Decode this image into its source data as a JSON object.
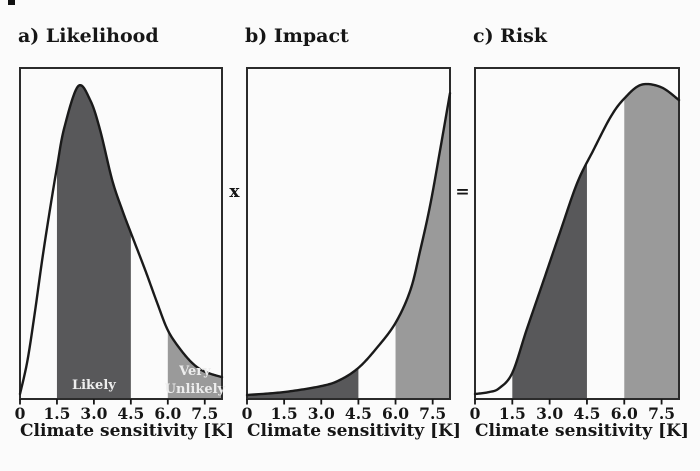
{
  "figure": {
    "background": "#fbfbfb",
    "colors": {
      "dark_band": "#58585a",
      "light_band": "#9a9a9a",
      "curve": "#1a1a1a",
      "box_border": "#2b2b2b",
      "text": "#161616",
      "band_label": "#ededed"
    },
    "operators": [
      {
        "symbol": "x"
      },
      {
        "symbol": "="
      }
    ]
  },
  "chart_data": [
    {
      "id": "likelihood",
      "type": "area",
      "title": "a) Likelihood",
      "xlabel": "Climate sensitivity [K]",
      "ylabel": "",
      "grid": false,
      "xlim": [
        0,
        8.2
      ],
      "ylim": [
        0,
        1
      ],
      "x_ticks": [
        "0",
        "1.5",
        "3.0",
        "4.5",
        "6.0",
        "7.5"
      ],
      "x_tick_values": [
        0,
        1.5,
        3.0,
        4.5,
        6.0,
        7.5
      ],
      "curve_k": [
        0,
        0.3,
        0.6,
        0.9,
        1.2,
        1.5,
        1.8,
        2.36,
        2.85,
        3.25,
        3.74,
        4.15,
        4.5,
        5.08,
        5.57,
        6.0,
        6.5,
        7.03,
        7.52,
        8.2
      ],
      "curve_h": [
        0.015,
        0.115,
        0.26,
        0.42,
        0.565,
        0.7,
        0.82,
        0.945,
        0.903,
        0.813,
        0.662,
        0.571,
        0.502,
        0.39,
        0.29,
        0.208,
        0.151,
        0.106,
        0.082,
        0.066
      ],
      "bands": [
        {
          "from": 1.5,
          "to": 4.5,
          "shade": "dark",
          "label": "Likely",
          "label_lines": [
            "Likely"
          ]
        },
        {
          "from": 6.0,
          "to": 8.2,
          "shade": "light",
          "label": "Very Unlikely",
          "label_lines": [
            "Very",
            "Unlikely"
          ]
        }
      ]
    },
    {
      "id": "impact",
      "type": "area",
      "title": "b) Impact",
      "xlabel": "Climate sensitivity [K]",
      "ylabel": "",
      "grid": false,
      "xlim": [
        0,
        8.2
      ],
      "ylim": [
        0,
        1
      ],
      "x_ticks": [
        "0",
        "1.5",
        "3.0",
        "4.5",
        "6.0",
        "7.5"
      ],
      "x_tick_values": [
        0,
        1.5,
        3.0,
        4.5,
        6.0,
        7.5
      ],
      "curve_k": [
        0,
        1.5,
        3.0,
        3.74,
        4.5,
        5.24,
        6.0,
        6.6,
        7.0,
        7.4,
        7.8,
        8.2
      ],
      "curve_h": [
        0.012,
        0.021,
        0.039,
        0.057,
        0.094,
        0.154,
        0.23,
        0.329,
        0.45,
        0.586,
        0.752,
        0.924
      ],
      "bands": [
        {
          "from": 0.0,
          "to": 4.5,
          "shade": "dark",
          "label": "",
          "label_lines": []
        },
        {
          "from": 6.0,
          "to": 8.2,
          "shade": "light",
          "label": "",
          "label_lines": []
        }
      ]
    },
    {
      "id": "risk",
      "type": "area",
      "title": "c) Risk",
      "xlabel": "Climate sensitivity [K]",
      "ylabel": "",
      "grid": false,
      "xlim": [
        0,
        8.2
      ],
      "ylim": [
        0,
        1
      ],
      "x_ticks": [
        "0",
        "1.5",
        "3.0",
        "4.5",
        "6.0",
        "7.5"
      ],
      "x_tick_values": [
        0,
        1.5,
        3.0,
        4.5,
        6.0,
        7.5
      ],
      "curve_k": [
        0,
        0.57,
        0.98,
        1.5,
        2.07,
        2.72,
        3.41,
        4.11,
        4.76,
        5.45,
        5.98,
        6.67,
        7.48,
        8.2
      ],
      "curve_h": [
        0.015,
        0.021,
        0.033,
        0.079,
        0.208,
        0.35,
        0.502,
        0.653,
        0.752,
        0.852,
        0.906,
        0.949,
        0.942,
        0.903
      ],
      "bands": [
        {
          "from": 1.5,
          "to": 4.5,
          "shade": "dark",
          "label": "",
          "label_lines": []
        },
        {
          "from": 6.0,
          "to": 8.2,
          "shade": "light",
          "label": "",
          "label_lines": []
        }
      ]
    }
  ]
}
